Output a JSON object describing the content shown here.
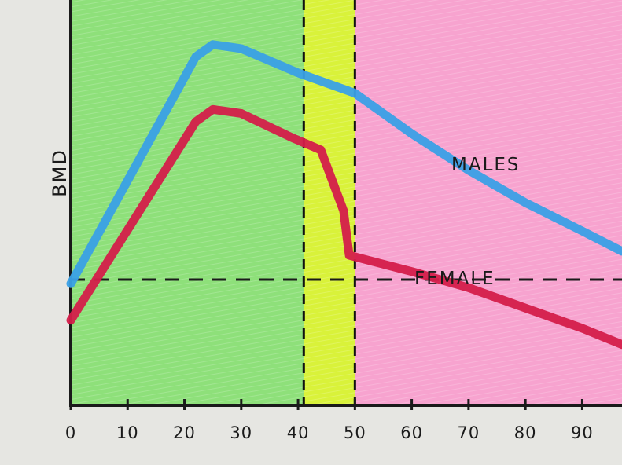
{
  "chart_data": {
    "type": "line",
    "title": "",
    "xlabel": "",
    "ylabel": "BMD",
    "xlim": [
      0,
      97
    ],
    "ylim": [
      0,
      100
    ],
    "x_ticks": [
      0,
      10,
      20,
      30,
      40,
      50,
      60,
      70,
      80,
      90
    ],
    "x_tick_labels": [
      "0",
      "10",
      "20",
      "30",
      "40",
      "50",
      "60",
      "70",
      "80",
      "90"
    ],
    "grid": false,
    "legend": "none",
    "regions": [
      {
        "x_start": 0,
        "x_end": 41,
        "color": "#8ee07a"
      },
      {
        "x_start": 41,
        "x_end": 50,
        "color": "#d9f23a"
      },
      {
        "x_start": 50,
        "x_end": 97,
        "color": "#f7a3cf"
      }
    ],
    "vertical_dashed_lines": [
      41,
      50
    ],
    "reference_line_y": 31,
    "series": [
      {
        "name": "MALES",
        "color": "#3aa0e6",
        "x": [
          0,
          22,
          25,
          30,
          40,
          50,
          60,
          70,
          80,
          90,
          97
        ],
        "y": [
          30,
          86,
          89,
          88,
          82,
          77,
          67,
          58,
          50,
          43,
          38
        ]
      },
      {
        "name": "FEMALE",
        "color": "#d41e4a",
        "x": [
          0,
          22,
          25,
          30,
          39,
          44,
          48,
          49,
          60,
          70,
          80,
          90,
          97
        ],
        "y": [
          21,
          70,
          73,
          72,
          66,
          63,
          48,
          37,
          33,
          29,
          24,
          19,
          15
        ]
      }
    ]
  }
}
